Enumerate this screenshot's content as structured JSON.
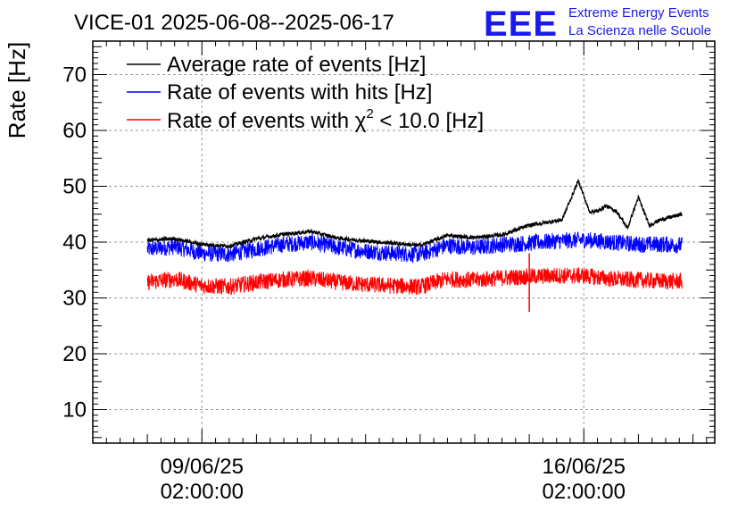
{
  "header": {
    "title": "VICE-01 2025-06-08--2025-06-17",
    "logo_text": "EEE",
    "logo_line1": "Extreme Energy Events",
    "logo_line2": "La Scienza nelle Scuole"
  },
  "colors": {
    "black_series": "#000000",
    "blue_series": "#0000ff",
    "red_series": "#ff0000",
    "logo": "#1a1aee",
    "grid": "#9a9a9a"
  },
  "chart_data": {
    "type": "line",
    "title": "VICE-01 2025-06-08--2025-06-17",
    "xlabel": "",
    "ylabel": "Rate [Hz]",
    "ylim": [
      4,
      76
    ],
    "yticks": [
      10,
      20,
      30,
      40,
      50,
      60,
      70
    ],
    "x_ticks": [
      {
        "day": 1,
        "label_date": "09/06/25",
        "label_time": "02:00:00"
      },
      {
        "day": 8,
        "label_date": "16/06/25",
        "label_time": "02:00:00"
      }
    ],
    "xlim_days": [
      -1.0,
      10.4
    ],
    "x_unit": "days from 08/06/25 02:00:00",
    "grid": true,
    "legend_position": "top-left",
    "series": [
      {
        "name": "Average rate of events [Hz]",
        "color": "#000000",
        "days": [
          0.0,
          0.5,
          1.0,
          1.5,
          2.0,
          2.5,
          3.0,
          3.5,
          4.0,
          4.5,
          5.0,
          5.5,
          6.0,
          6.5,
          7.0,
          7.3,
          7.6,
          7.9,
          8.1,
          8.25,
          8.4,
          8.6,
          8.8,
          9.0,
          9.2,
          9.4,
          9.6,
          9.8
        ],
        "values": [
          40.3,
          40.6,
          39.6,
          39.3,
          40.6,
          41.4,
          41.9,
          40.7,
          40.2,
          39.8,
          39.4,
          41.2,
          40.8,
          41.3,
          43.0,
          43.5,
          44.0,
          51.0,
          45.5,
          45.5,
          46.5,
          45.5,
          42.5,
          48.0,
          43.0,
          44.0,
          44.5,
          45.0
        ],
        "noise": 0.7
      },
      {
        "name": "Rate of events with hits [Hz]",
        "color": "#0000ff",
        "days": [
          0.0,
          0.5,
          1.0,
          1.5,
          2.0,
          2.5,
          3.0,
          3.5,
          4.0,
          4.5,
          5.0,
          5.5,
          6.0,
          6.5,
          7.0,
          7.5,
          8.0,
          8.5,
          9.0,
          9.5,
          9.8
        ],
        "values": [
          38.7,
          39.2,
          38.0,
          37.8,
          38.8,
          39.6,
          40.0,
          39.0,
          38.4,
          38.0,
          37.8,
          39.4,
          39.0,
          39.6,
          39.8,
          40.2,
          40.4,
          40.0,
          39.6,
          39.6,
          39.4
        ],
        "noise": 3.0
      },
      {
        "name": "Rate of events with χ² < 10.0 [Hz]",
        "color": "#ff0000",
        "days": [
          0.0,
          0.5,
          1.0,
          1.5,
          2.0,
          2.5,
          3.0,
          3.5,
          4.0,
          4.5,
          5.0,
          5.5,
          6.0,
          6.5,
          7.0,
          7.5,
          8.0,
          8.5,
          9.0,
          9.5,
          9.8
        ],
        "values": [
          32.8,
          33.4,
          32.2,
          32.0,
          32.8,
          33.3,
          33.5,
          32.8,
          32.4,
          32.2,
          32.0,
          33.4,
          33.2,
          33.6,
          33.8,
          34.0,
          34.0,
          33.4,
          33.2,
          33.0,
          33.0
        ],
        "noise": 3.0,
        "spike": {
          "day": 7.0,
          "low": 27.5,
          "high": 38.0
        }
      }
    ],
    "legend": [
      {
        "prefix": "Average rate of events [Hz]",
        "sup": "",
        "suffix": ""
      },
      {
        "prefix": "Rate of events with hits [Hz]",
        "sup": "",
        "suffix": ""
      },
      {
        "prefix": "Rate of events with χ",
        "sup": "2",
        "suffix": " < 10.0 [Hz]"
      }
    ]
  }
}
